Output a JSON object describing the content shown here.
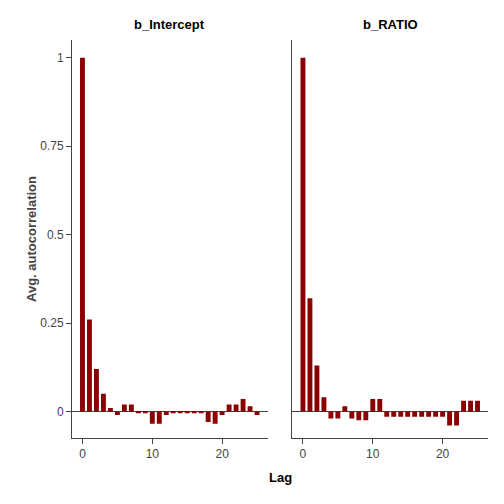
{
  "chart_data": [
    {
      "type": "bar",
      "title": "b_Intercept",
      "xlabel": "Lag",
      "ylabel": "Avg. autocorrelation",
      "x": [
        0,
        1,
        2,
        3,
        4,
        5,
        6,
        7,
        8,
        9,
        10,
        11,
        12,
        13,
        14,
        15,
        16,
        17,
        18,
        19,
        20,
        21,
        22,
        23,
        24,
        25
      ],
      "values": [
        1.0,
        0.26,
        0.12,
        0.05,
        0.01,
        -0.01,
        0.02,
        0.02,
        -0.005,
        -0.005,
        -0.035,
        -0.035,
        -0.01,
        -0.005,
        -0.005,
        -0.005,
        -0.005,
        -0.005,
        -0.03,
        -0.035,
        -0.01,
        0.02,
        0.02,
        0.035,
        0.015,
        -0.01
      ],
      "color": "#8B0000",
      "xlim": [
        -1.5,
        26.5
      ],
      "xticks": [
        0,
        10,
        20
      ],
      "ylim": [
        -0.075,
        1.05
      ],
      "yticks": [
        0.0,
        0.25,
        0.5,
        0.75,
        1.0
      ],
      "grid": false
    },
    {
      "type": "bar",
      "title": "b_RATIO",
      "x": [
        0,
        1,
        2,
        3,
        4,
        5,
        6,
        7,
        8,
        9,
        10,
        11,
        12,
        13,
        14,
        15,
        16,
        17,
        18,
        19,
        20,
        21,
        22,
        23,
        24,
        25
      ],
      "values": [
        1.0,
        0.32,
        0.13,
        0.04,
        -0.02,
        -0.02,
        0.015,
        -0.02,
        -0.025,
        -0.025,
        0.035,
        0.035,
        -0.015,
        -0.015,
        -0.015,
        -0.015,
        -0.015,
        -0.015,
        -0.015,
        -0.015,
        -0.015,
        -0.04,
        -0.04,
        0.03,
        0.03,
        0.03
      ],
      "color": "#8B0000",
      "xlim": [
        -1.5,
        26.5
      ],
      "xticks": [
        0,
        10,
        20
      ],
      "ylim": [
        -0.075,
        1.05
      ],
      "yticks": [
        0.0,
        0.25,
        0.5,
        0.75,
        1.0
      ],
      "grid": false,
      "tick_labels": "x"
    }
  ]
}
